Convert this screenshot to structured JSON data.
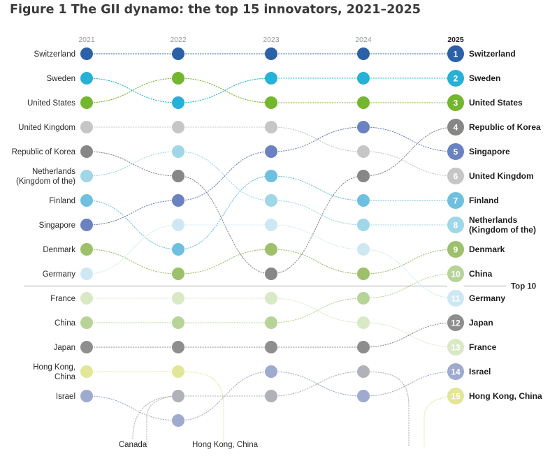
{
  "title": "Figure 1 The GII dynamo: the top 15 innovators, 2021–2025",
  "chart_data": {
    "type": "bump",
    "years": [
      "2021",
      "2022",
      "2023",
      "2024",
      "2025"
    ],
    "cutoff_label": "Top 10",
    "cutoff_rank": 10,
    "series": [
      {
        "name": "Switzerland",
        "color": "#2c61a8",
        "ranks": [
          1,
          1,
          1,
          1,
          1
        ]
      },
      {
        "name": "Sweden",
        "color": "#27b1d6",
        "ranks": [
          2,
          3,
          2,
          2,
          2
        ]
      },
      {
        "name": "United States",
        "color": "#74b62e",
        "ranks": [
          3,
          2,
          3,
          3,
          3
        ]
      },
      {
        "name": "United Kingdom",
        "color": "#c6c6c6",
        "ranks": [
          4,
          4,
          4,
          5,
          6
        ]
      },
      {
        "name": "Republic of Korea",
        "color": "#878787",
        "ranks": [
          5,
          6,
          10,
          6,
          4
        ]
      },
      {
        "name": "Netherlands (Kingdom of the)",
        "label_lines": [
          "Netherlands",
          "(Kingdom of the)"
        ],
        "color": "#9fd6e8",
        "ranks": [
          6,
          5,
          7,
          8,
          8
        ]
      },
      {
        "name": "Finland",
        "color": "#6fc0de",
        "ranks": [
          7,
          9,
          6,
          7,
          7
        ]
      },
      {
        "name": "Singapore",
        "color": "#6b82c0",
        "ranks": [
          8,
          7,
          5,
          4,
          5
        ]
      },
      {
        "name": "Denmark",
        "color": "#9dc06b",
        "ranks": [
          9,
          10,
          9,
          10,
          9
        ]
      },
      {
        "name": "Germany",
        "color": "#cde8f3",
        "ranks": [
          10,
          8,
          8,
          9,
          11
        ]
      },
      {
        "name": "France",
        "color": "#d9e8c5",
        "ranks": [
          11,
          11,
          11,
          12,
          13
        ]
      },
      {
        "name": "China",
        "color": "#b7d498",
        "ranks": [
          12,
          12,
          12,
          11,
          10
        ]
      },
      {
        "name": "Japan",
        "color": "#8e8e8e",
        "ranks": [
          13,
          13,
          13,
          13,
          12
        ]
      },
      {
        "name": "Hong Kong, China",
        "label_lines": [
          "Hong Kong,",
          "China"
        ],
        "color": "#e2e697",
        "ranks": [
          14,
          14,
          null,
          null,
          15
        ]
      },
      {
        "name": "Israel",
        "color": "#9faacf",
        "ranks": [
          15,
          16,
          14,
          15,
          14
        ]
      },
      {
        "name": "Canada",
        "color": "#b1b1b9",
        "ranks": [
          null,
          15,
          15,
          14,
          null
        ]
      }
    ],
    "right_labels": {
      "Netherlands (Kingdom of the)": [
        "Netherlands",
        "(Kingdom of the)"
      ]
    },
    "exits": [
      {
        "name": "Canada",
        "label": "Canada"
      },
      {
        "name": "Hong Kong, China",
        "label": "Hong Kong, China"
      }
    ]
  }
}
